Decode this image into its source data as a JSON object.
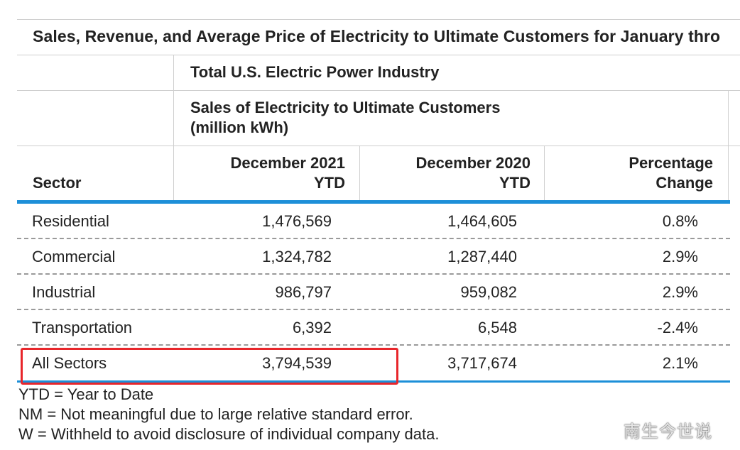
{
  "title": "Sales, Revenue, and Average Price of Electricity to Ultimate Customers for January thro",
  "industry_header": "Total U.S. Electric Power Industry",
  "section_header": {
    "line1": "Sales of Electricity to Ultimate Customers",
    "line2": "(million kWh)"
  },
  "columns": {
    "sector": "Sector",
    "col1_line1": "December 2021",
    "col1_line2": "YTD",
    "col2_line1": "December 2020",
    "col2_line2": "YTD",
    "col3_line1": "Percentage",
    "col3_line2": "Change"
  },
  "rows": [
    {
      "sector": "Residential",
      "dec2021": "1,476,569",
      "dec2020": "1,464,605",
      "change": "0.8%"
    },
    {
      "sector": "Commercial",
      "dec2021": "1,324,782",
      "dec2020": "1,287,440",
      "change": "2.9%"
    },
    {
      "sector": "Industrial",
      "dec2021": "986,797",
      "dec2020": "959,082",
      "change": "2.9%"
    },
    {
      "sector": "Transportation",
      "dec2021": "6,392",
      "dec2020": "6,548",
      "change": "-2.4%"
    },
    {
      "sector": "All Sectors",
      "dec2021": "3,794,539",
      "dec2020": "3,717,674",
      "change": "2.1%"
    }
  ],
  "footnotes": [
    "YTD = Year to Date",
    "NM = Not meaningful due to large relative standard error.",
    "W = Withheld to avoid disclosure of individual company data."
  ],
  "watermark": "南生今世说",
  "colors": {
    "accent_blue": "#1d8fd8",
    "highlight_red": "#e8262b",
    "rule_gray": "#cfcfcf"
  }
}
